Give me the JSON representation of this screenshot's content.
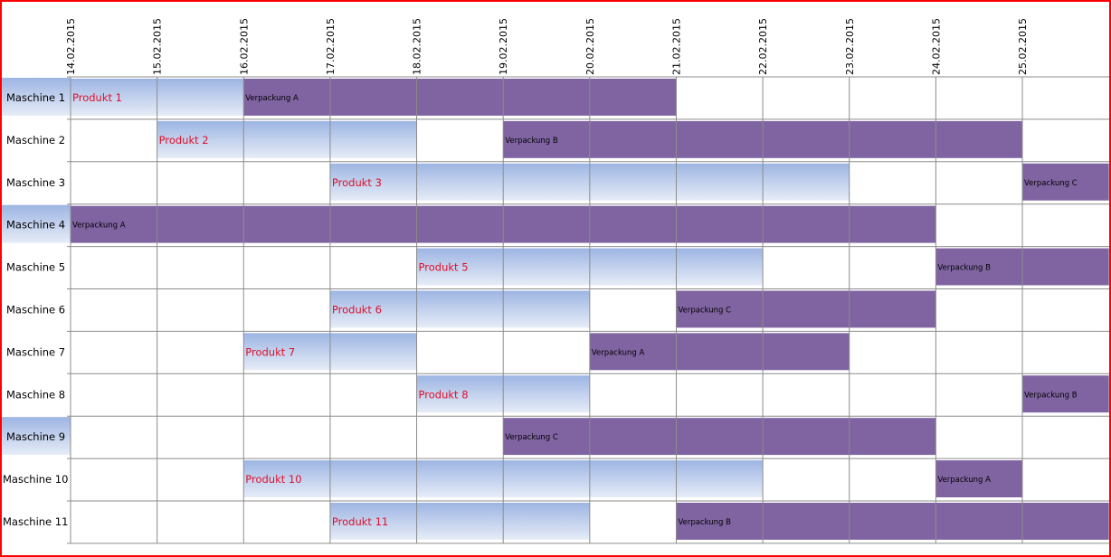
{
  "chart_data": {
    "type": "gantt",
    "x_ticks": [
      "14.02.2015",
      "15.02.2015",
      "16.02.2015",
      "17.02.2015",
      "18.02.2015",
      "19.02.2015",
      "20.02.2015",
      "21.02.2015",
      "22.02.2015",
      "23.02.2015",
      "24.02.2015",
      "25.02.2015"
    ],
    "xlim": [
      "14.02.2015",
      "26.02.2015"
    ],
    "grid": true,
    "machines": [
      "Maschine 1",
      "Maschine 2",
      "Maschine 3",
      "Maschine 4",
      "Maschine 5",
      "Maschine 6",
      "Maschine 7",
      "Maschine 8",
      "Maschine 9",
      "Maschine 10",
      "Maschine 11"
    ],
    "highlighted_machines": [
      "Maschine 1",
      "Maschine 4",
      "Maschine 9"
    ],
    "colors": {
      "produkt_top": "#9db5e3",
      "produkt_bottom": "#e6ecf7",
      "verpackung": "#8064a2",
      "produkt_text": "#e0102a",
      "grid": "#8c8c8c",
      "border": "#ff0000"
    },
    "tasks": [
      {
        "machine": "Maschine 1",
        "label": "Produkt 1",
        "kind": "produkt",
        "start": "14.02.2015",
        "end": "16.02.2015"
      },
      {
        "machine": "Maschine 1",
        "label": "Verpackung A",
        "kind": "verpackung",
        "start": "16.02.2015",
        "end": "21.02.2015"
      },
      {
        "machine": "Maschine 2",
        "label": "Produkt 2",
        "kind": "produkt",
        "start": "15.02.2015",
        "end": "18.02.2015"
      },
      {
        "machine": "Maschine 2",
        "label": "Verpackung B",
        "kind": "verpackung",
        "start": "19.02.2015",
        "end": "25.02.2015"
      },
      {
        "machine": "Maschine 3",
        "label": "Produkt 3",
        "kind": "produkt",
        "start": "17.02.2015",
        "end": "23.02.2015"
      },
      {
        "machine": "Maschine 3",
        "label": "Verpackung C",
        "kind": "verpackung",
        "start": "25.02.2015",
        "end": "26.02.2015"
      },
      {
        "machine": "Maschine 4",
        "label": "Verpackung A",
        "kind": "verpackung",
        "start": "14.02.2015",
        "end": "24.02.2015"
      },
      {
        "machine": "Maschine 5",
        "label": "Produkt 5",
        "kind": "produkt",
        "start": "18.02.2015",
        "end": "22.02.2015"
      },
      {
        "machine": "Maschine 5",
        "label": "Verpackung B",
        "kind": "verpackung",
        "start": "24.02.2015",
        "end": "26.02.2015"
      },
      {
        "machine": "Maschine 6",
        "label": "Produkt 6",
        "kind": "produkt",
        "start": "17.02.2015",
        "end": "20.02.2015"
      },
      {
        "machine": "Maschine 6",
        "label": "Verpackung C",
        "kind": "verpackung",
        "start": "21.02.2015",
        "end": "24.02.2015"
      },
      {
        "machine": "Maschine 7",
        "label": "Produkt 7",
        "kind": "produkt",
        "start": "16.02.2015",
        "end": "18.02.2015"
      },
      {
        "machine": "Maschine 7",
        "label": "Verpackung A",
        "kind": "verpackung",
        "start": "20.02.2015",
        "end": "23.02.2015"
      },
      {
        "machine": "Maschine 8",
        "label": "Produkt 8",
        "kind": "produkt",
        "start": "18.02.2015",
        "end": "20.02.2015"
      },
      {
        "machine": "Maschine 8",
        "label": "Verpackung B",
        "kind": "verpackung",
        "start": "25.02.2015",
        "end": "26.02.2015"
      },
      {
        "machine": "Maschine 9",
        "label": "Verpackung C",
        "kind": "verpackung",
        "start": "19.02.2015",
        "end": "24.02.2015"
      },
      {
        "machine": "Maschine 10",
        "label": "Produkt 10",
        "kind": "produkt",
        "start": "16.02.2015",
        "end": "22.02.2015"
      },
      {
        "machine": "Maschine 10",
        "label": "Verpackung A",
        "kind": "verpackung",
        "start": "24.02.2015",
        "end": "25.02.2015"
      },
      {
        "machine": "Maschine 11",
        "label": "Produkt 11",
        "kind": "produkt",
        "start": "17.02.2015",
        "end": "20.02.2015"
      },
      {
        "machine": "Maschine 11",
        "label": "Verpackung B",
        "kind": "verpackung",
        "start": "21.02.2015",
        "end": "26.02.2015"
      }
    ]
  }
}
